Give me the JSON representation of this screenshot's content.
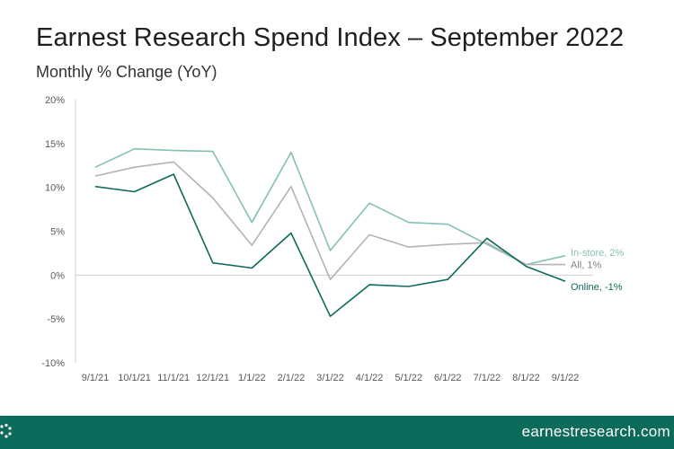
{
  "header": {
    "title": "Earnest Research Spend Index – September 2022",
    "subtitle": "Monthly % Change (YoY)"
  },
  "footer": {
    "website": "earnestresearch.com",
    "logo_icon": "earnest-logo-icon"
  },
  "colors": {
    "in_store": "#85bfb6",
    "all": "#b3b3b3",
    "online": "#0d6b5c",
    "footer_bg": "#0d6b5c"
  },
  "chart_data": {
    "type": "line",
    "title": "Earnest Research Spend Index – September 2022",
    "subtitle": "Monthly % Change (YoY)",
    "x": [
      "9/1/21",
      "10/1/21",
      "11/1/21",
      "12/1/21",
      "1/1/22",
      "2/1/22",
      "3/1/22",
      "4/1/22",
      "5/1/22",
      "6/1/22",
      "7/1/22",
      "8/1/22",
      "9/1/22"
    ],
    "yticks": [
      "-10%",
      "-5%",
      "0%",
      "5%",
      "10%",
      "15%",
      "20%"
    ],
    "ylim": [
      -10,
      20
    ],
    "unit": "%",
    "grid": false,
    "legend": "end-of-line labels",
    "series": [
      {
        "name": "In-store",
        "label": "In-store, 2%",
        "color": "#85bfb6",
        "values": [
          12.3,
          14.4,
          14.2,
          14.1,
          6.0,
          14.0,
          2.8,
          8.2,
          6.0,
          5.8,
          3.5,
          1.2,
          2.2
        ]
      },
      {
        "name": "All",
        "label": "All, 1%",
        "color": "#b3b3b3",
        "values": [
          11.3,
          12.3,
          12.9,
          8.8,
          3.4,
          10.1,
          -0.5,
          4.6,
          3.2,
          3.5,
          3.7,
          1.2,
          1.2
        ]
      },
      {
        "name": "Online",
        "label": "Online, -1%",
        "color": "#0d6b5c",
        "values": [
          10.1,
          9.5,
          11.5,
          1.4,
          0.8,
          4.8,
          -4.7,
          -1.1,
          -1.3,
          -0.5,
          4.2,
          1.0,
          -0.7
        ]
      }
    ]
  }
}
